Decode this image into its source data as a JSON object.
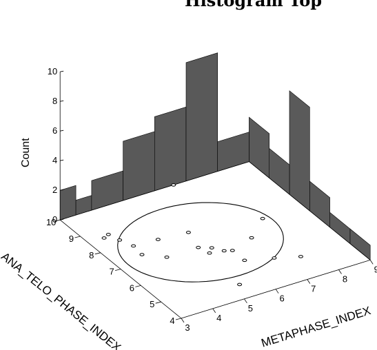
{
  "chart_data": {
    "type": "3d-histogram-scatter",
    "title": "Histogram Top",
    "count_axis": {
      "label": "Count",
      "min": 0,
      "max": 10,
      "ticks": [
        "0",
        "2",
        "4",
        "6",
        "8",
        "10"
      ]
    },
    "x_axis": {
      "label": "METAPHASE_INDEX",
      "min": 3,
      "max": 9,
      "ticks": [
        "3",
        "4",
        "5",
        "6",
        "7",
        "8",
        "9"
      ]
    },
    "y_axis": {
      "label": "ANA_TELO_PHASE_INDEX",
      "min": 4,
      "max": 10,
      "ticks": [
        "4",
        "5",
        "6",
        "7",
        "8",
        "9",
        "10"
      ]
    },
    "histogram_x": {
      "bins": [
        [
          3,
          3.5
        ],
        [
          3.5,
          4
        ],
        [
          4,
          5
        ],
        [
          5,
          6
        ],
        [
          6,
          7
        ],
        [
          7,
          8
        ],
        [
          8,
          9
        ]
      ],
      "counts": [
        2,
        1,
        2,
        4,
        5,
        8,
        2
      ]
    },
    "histogram_y": {
      "bins": [
        [
          4,
          5
        ],
        [
          5,
          6
        ],
        [
          6,
          7
        ],
        [
          7,
          8
        ],
        [
          8,
          9
        ],
        [
          9,
          10
        ]
      ],
      "counts": [
        1,
        1,
        2,
        7,
        2,
        3
      ]
    },
    "points": [
      {
        "x": 3.5,
        "y": 8.6
      },
      {
        "x": 3.7,
        "y": 8.7
      },
      {
        "x": 3.8,
        "y": 8.3
      },
      {
        "x": 3.95,
        "y": 7.85
      },
      {
        "x": 3.9,
        "y": 7.35
      },
      {
        "x": 4.4,
        "y": 6.9
      },
      {
        "x": 4.7,
        "y": 7.8
      },
      {
        "x": 5.3,
        "y": 4.7
      },
      {
        "x": 5.4,
        "y": 6.9
      },
      {
        "x": 5.6,
        "y": 7.7
      },
      {
        "x": 5.5,
        "y": 6.5
      },
      {
        "x": 5.7,
        "y": 6.7
      },
      {
        "x": 5.9,
        "y": 6.4
      },
      {
        "x": 6.1,
        "y": 6.3
      },
      {
        "x": 6.1,
        "y": 5.7
      },
      {
        "x": 6.9,
        "y": 6.6
      },
      {
        "x": 6.85,
        "y": 5.4
      },
      {
        "x": 7.5,
        "y": 5.1
      },
      {
        "x": 7.7,
        "y": 7.3
      },
      {
        "x": 6.6,
        "y": 10.0
      }
    ],
    "ellipse": {
      "cx": 5.6,
      "cy": 7.1,
      "rx": 2.3,
      "ry": 2.0
    },
    "grid": false
  }
}
